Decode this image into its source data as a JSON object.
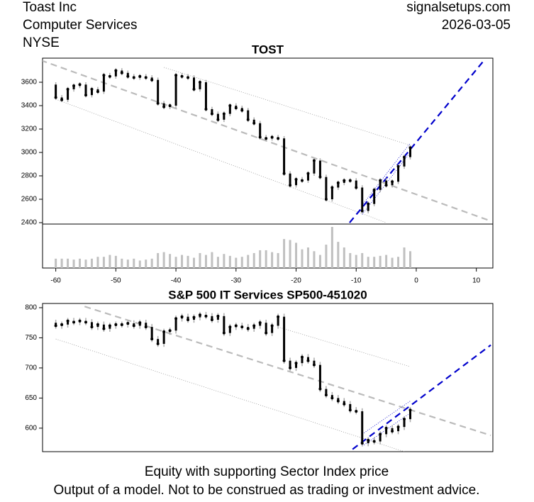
{
  "header": {
    "company": "Toast Inc",
    "sector": "Computer Services",
    "exchange": "NYSE",
    "site": "signalsetups.com",
    "date": "2026-03-05"
  },
  "footer": [
    "Equity with supporting Sector Index price",
    "Output of a model. Not to be construed as trading or investment advice."
  ],
  "chart_data": [
    {
      "type": "candlestick",
      "title": "TOST",
      "x": [
        -60,
        -59,
        -58,
        -57,
        -56,
        -55,
        -54,
        -53,
        -52,
        -51,
        -50,
        -49,
        -48,
        -47,
        -46,
        -45,
        -44,
        -43,
        -42,
        -41,
        -40,
        -39,
        -38,
        -37,
        -36,
        -35,
        -34,
        -33,
        -32,
        -31,
        -30,
        -29,
        -28,
        -27,
        -26,
        -25,
        -24,
        -23,
        -22,
        -21,
        -20,
        -19,
        -18,
        -17,
        -16,
        -15,
        -14,
        -13,
        -12,
        -11,
        -10,
        -9,
        -8,
        -7,
        -6,
        -5,
        -4,
        -3,
        -2,
        -1
      ],
      "open": [
        3580,
        3470,
        3450,
        3540,
        3570,
        3580,
        3490,
        3540,
        3520,
        3660,
        3650,
        3700,
        3680,
        3650,
        3640,
        3650,
        3640,
        3620,
        3420,
        3390,
        3400,
        3660,
        3650,
        3640,
        3540,
        3600,
        3370,
        3330,
        3280,
        3330,
        3400,
        3380,
        3360,
        3280,
        3250,
        3130,
        3120,
        3130,
        3120,
        2820,
        2720,
        2770,
        2760,
        2820,
        2930,
        2790,
        2600,
        2700,
        2740,
        2760,
        2760,
        2700,
        2500,
        2560,
        2680,
        2760,
        2720,
        2750,
        2880,
        2960
      ],
      "high": [
        3600,
        3490,
        3560,
        3590,
        3600,
        3600,
        3560,
        3560,
        3680,
        3680,
        3720,
        3720,
        3700,
        3670,
        3670,
        3670,
        3660,
        3640,
        3440,
        3420,
        3680,
        3680,
        3670,
        3660,
        3620,
        3620,
        3390,
        3350,
        3350,
        3420,
        3420,
        3400,
        3380,
        3300,
        3270,
        3150,
        3150,
        3150,
        3140,
        2840,
        2790,
        2790,
        2840,
        2950,
        2950,
        2810,
        2720,
        2760,
        2780,
        2780,
        2780,
        2720,
        2580,
        2700,
        2780,
        2780,
        2770,
        2900,
        2980,
        3060
      ],
      "low": [
        3450,
        3430,
        3430,
        3520,
        3550,
        3470,
        3470,
        3500,
        3500,
        3630,
        3630,
        3660,
        3630,
        3620,
        3620,
        3620,
        3600,
        3400,
        3370,
        3370,
        3380,
        3630,
        3620,
        3520,
        3520,
        3350,
        3310,
        3260,
        3260,
        3310,
        3360,
        3340,
        3260,
        3230,
        3110,
        3100,
        3100,
        3100,
        2800,
        2700,
        2700,
        2740,
        2740,
        2800,
        2770,
        2580,
        2580,
        2680,
        2720,
        2740,
        2680,
        2480,
        2480,
        2540,
        2660,
        2700,
        2700,
        2730,
        2860,
        2940
      ],
      "close": [
        3470,
        3450,
        3540,
        3570,
        3580,
        3490,
        3540,
        3520,
        3660,
        3650,
        3700,
        3680,
        3650,
        3640,
        3650,
        3640,
        3620,
        3420,
        3390,
        3400,
        3660,
        3650,
        3640,
        3540,
        3600,
        3370,
        3330,
        3280,
        3330,
        3400,
        3380,
        3360,
        3280,
        3250,
        3130,
        3120,
        3130,
        3120,
        2820,
        2720,
        2770,
        2760,
        2820,
        2930,
        2790,
        2600,
        2700,
        2740,
        2760,
        2760,
        2700,
        2500,
        2560,
        2680,
        2760,
        2720,
        2750,
        2880,
        2960,
        3040
      ],
      "volume": [
        10,
        10,
        10,
        9,
        10,
        9,
        10,
        12,
        12,
        14,
        13,
        10,
        9,
        10,
        8,
        9,
        10,
        16,
        17,
        15,
        12,
        14,
        13,
        11,
        16,
        14,
        17,
        12,
        15,
        13,
        11,
        12,
        14,
        16,
        19,
        19,
        17,
        16,
        31,
        30,
        27,
        20,
        22,
        18,
        14,
        25,
        44,
        28,
        22,
        16,
        14,
        16,
        12,
        12,
        13,
        14,
        11,
        12,
        22,
        18
      ],
      "xlim": [
        -62.2,
        12.75
      ],
      "ylim": [
        2388,
        3806
      ],
      "xticks": [
        -60,
        -50,
        -40,
        -30,
        -20,
        -10,
        0,
        10
      ],
      "yticks": [
        2400,
        2600,
        2800,
        3000,
        3200,
        3400,
        3600
      ],
      "lines": [
        {
          "x": [
            -62.5,
            12.5
          ],
          "y": [
            3788,
            2412
          ],
          "color": "#bbbbbb",
          "style": "dashed"
        },
        {
          "x": [
            -42,
            -1
          ],
          "y": [
            3727,
            3061
          ],
          "color": "#999999",
          "style": "dotted"
        },
        {
          "x": [
            -60,
            -5
          ],
          "y": [
            3455,
            2400
          ],
          "color": "#999999",
          "style": "dotted"
        },
        {
          "x": [
            -11.1,
            11.3
          ],
          "y": [
            2400,
            3788
          ],
          "color": "#0000cc",
          "style": "dashed"
        },
        {
          "x": [
            -9,
            -1
          ],
          "y": [
            2470,
            3000
          ],
          "color": "#0000cc",
          "style": "dotted"
        },
        {
          "x": [
            -9,
            -1
          ],
          "y": [
            2550,
            3080
          ],
          "color": "#0000cc",
          "style": "dotted"
        }
      ]
    },
    {
      "type": "candlestick",
      "title": "S&P 500 IT Services SP500-451020",
      "x": [
        -60,
        -59,
        -58,
        -57,
        -56,
        -55,
        -54,
        -53,
        -52,
        -51,
        -50,
        -49,
        -48,
        -47,
        -46,
        -45,
        -44,
        -43,
        -42,
        -41,
        -40,
        -39,
        -38,
        -37,
        -36,
        -35,
        -34,
        -33,
        -32,
        -31,
        -30,
        -29,
        -28,
        -27,
        -26,
        -25,
        -24,
        -23,
        -22,
        -21,
        -20,
        -19,
        -18,
        -17,
        -16,
        -15,
        -14,
        -13,
        -12,
        -11,
        -10,
        -9,
        -8,
        -7,
        -6,
        -5,
        -4,
        -3,
        -2,
        -1
      ],
      "open": [
        775,
        770,
        772,
        778,
        776,
        778,
        776,
        768,
        772,
        765,
        770,
        772,
        772,
        774,
        770,
        775,
        768,
        748,
        740,
        760,
        762,
        782,
        785,
        780,
        784,
        788,
        786,
        780,
        786,
        758,
        768,
        770,
        768,
        765,
        770,
        775,
        758,
        770,
        785,
        712,
        700,
        708,
        718,
        712,
        705,
        665,
        655,
        650,
        645,
        640,
        630,
        628,
        575,
        580,
        578,
        590,
        600,
        595,
        602,
        615
      ],
      "high": [
        780,
        777,
        783,
        783,
        783,
        783,
        781,
        777,
        777,
        775,
        777,
        777,
        779,
        779,
        780,
        780,
        773,
        753,
        765,
        767,
        787,
        790,
        790,
        789,
        793,
        793,
        791,
        791,
        791,
        773,
        775,
        775,
        773,
        775,
        780,
        780,
        775,
        790,
        790,
        717,
        713,
        723,
        723,
        717,
        710,
        670,
        660,
        655,
        650,
        645,
        635,
        633,
        585,
        585,
        595,
        605,
        605,
        607,
        620,
        635
      ],
      "low": [
        765,
        765,
        767,
        771,
        771,
        771,
        763,
        763,
        760,
        760,
        765,
        767,
        767,
        765,
        765,
        763,
        743,
        735,
        735,
        755,
        757,
        777,
        775,
        775,
        779,
        781,
        775,
        775,
        753,
        753,
        763,
        763,
        760,
        760,
        765,
        753,
        753,
        765,
        707,
        695,
        695,
        703,
        707,
        700,
        660,
        650,
        645,
        640,
        635,
        625,
        623,
        570,
        570,
        573,
        573,
        585,
        590,
        590,
        597,
        610
      ],
      "close": [
        770,
        772,
        778,
        776,
        778,
        776,
        768,
        772,
        765,
        770,
        772,
        772,
        774,
        770,
        775,
        768,
        748,
        740,
        760,
        762,
        782,
        785,
        780,
        784,
        788,
        786,
        780,
        786,
        758,
        768,
        770,
        768,
        765,
        770,
        775,
        758,
        770,
        785,
        712,
        700,
        708,
        718,
        712,
        705,
        665,
        655,
        650,
        645,
        640,
        630,
        628,
        575,
        580,
        578,
        590,
        600,
        595,
        602,
        615,
        630
      ],
      "xlim": [
        -62.2,
        12.75
      ],
      "ylim": [
        561,
        807
      ],
      "yticks": [
        600,
        650,
        700,
        750,
        800
      ],
      "lines": [
        {
          "x": [
            -55.2,
            12.4
          ],
          "y": [
            802,
            588
          ],
          "color": "#bbbbbb",
          "style": "dashed"
        },
        {
          "x": [
            -22.7,
            -1
          ],
          "y": [
            767,
            702
          ],
          "color": "#999999",
          "style": "dotted"
        },
        {
          "x": [
            -60,
            -2
          ],
          "y": [
            748,
            561
          ],
          "color": "#999999",
          "style": "dotted"
        },
        {
          "x": [
            -10.6,
            12.4
          ],
          "y": [
            565,
            738
          ],
          "color": "#0000cc",
          "style": "dashed"
        },
        {
          "x": [
            -9,
            -1
          ],
          "y": [
            570,
            625
          ],
          "color": "#0000cc",
          "style": "dotted"
        },
        {
          "x": [
            -9,
            -1
          ],
          "y": [
            590,
            645
          ],
          "color": "#0000cc",
          "style": "dotted"
        }
      ]
    }
  ]
}
